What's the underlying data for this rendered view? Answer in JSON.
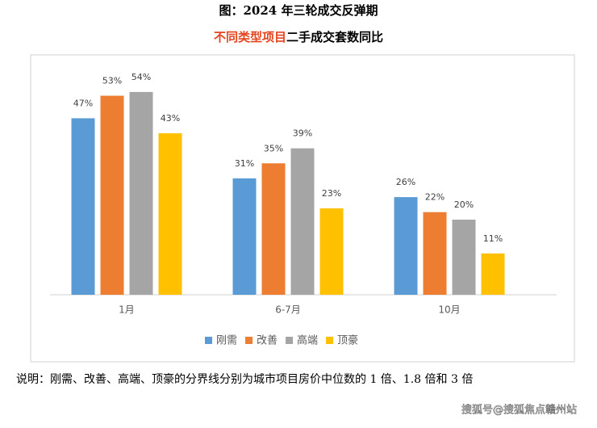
{
  "header": {
    "title": "图：2024 年三轮成交反弹期"
  },
  "chart_data": {
    "type": "bar",
    "subtitle_highlight": "不同类型项目",
    "subtitle_rest": "二手成交套数同比",
    "categories": [
      "1月",
      "6-7月",
      "10月"
    ],
    "series": [
      {
        "name": "刚需",
        "color": "#5b9bd5",
        "values": [
          47,
          31,
          26
        ],
        "value_labels": [
          "47%",
          "31%",
          "26%"
        ]
      },
      {
        "name": "改善",
        "color": "#ed7d31",
        "values": [
          53,
          35,
          22
        ],
        "value_labels": [
          "53%",
          "35%",
          "22%"
        ]
      },
      {
        "name": "高端",
        "color": "#a5a5a5",
        "values": [
          54,
          39,
          20
        ],
        "value_labels": [
          "54%",
          "39%",
          "20%"
        ]
      },
      {
        "name": "顶豪",
        "color": "#ffc000",
        "values": [
          43,
          23,
          11
        ],
        "value_labels": [
          "43%",
          "23%",
          "11%"
        ]
      }
    ]
  },
  "footer": {
    "note": "说明：刚需、改善、高端、顶豪的分界线分别为城市项目房价中位数的 1 倍、1.8 倍和 3 倍",
    "watermark": "搜狐号@搜狐焦点赣州站"
  }
}
